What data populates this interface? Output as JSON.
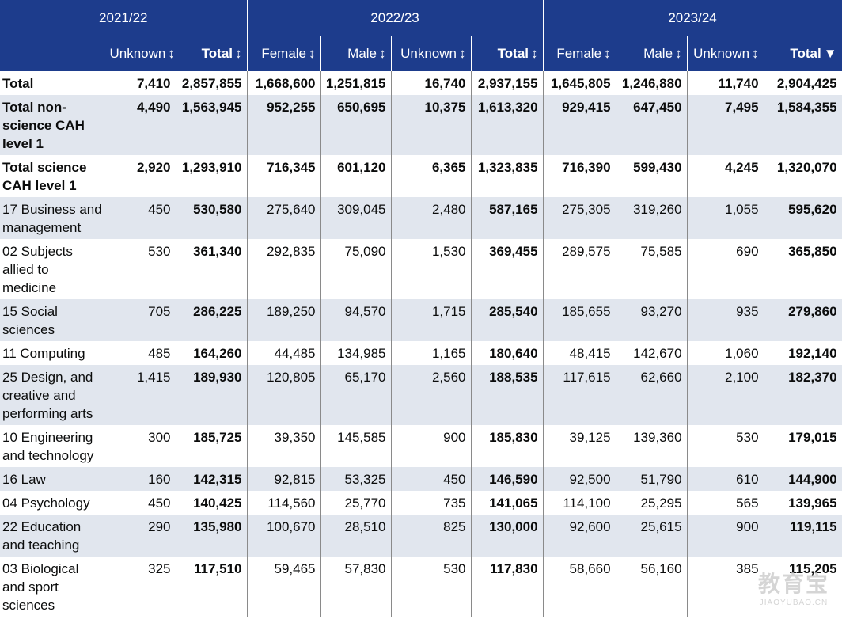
{
  "colors": {
    "header_bg": "#1d3c8c",
    "header_text": "#ffffff",
    "row_shade": "#e1e6ee"
  },
  "years": [
    "2021/22",
    "2022/23",
    "2023/24"
  ],
  "columns": [
    {
      "label": "",
      "icon": ""
    },
    {
      "label": "Unknown",
      "icon": "sort-both-icon",
      "glyph": "↕"
    },
    {
      "label": "Total",
      "icon": "sort-both-icon",
      "glyph": "↕"
    },
    {
      "label": "Female",
      "icon": "sort-both-icon",
      "glyph": "↕"
    },
    {
      "label": "Male",
      "icon": "sort-both-icon",
      "glyph": "↕"
    },
    {
      "label": "Unknown",
      "icon": "sort-both-icon",
      "glyph": "↕"
    },
    {
      "label": "Total",
      "icon": "sort-both-icon",
      "glyph": "↕"
    },
    {
      "label": "Female",
      "icon": "sort-both-icon",
      "glyph": "↕"
    },
    {
      "label": "Male",
      "icon": "sort-both-icon",
      "glyph": "↕"
    },
    {
      "label": "Unknown",
      "icon": "sort-both-icon",
      "glyph": "↕"
    },
    {
      "label": "Total",
      "icon": "sort-desc-icon",
      "glyph": "▼"
    }
  ],
  "rows": [
    {
      "label": "Total",
      "cells": [
        "7,410",
        "2,857,855",
        "1,668,600",
        "1,251,815",
        "16,740",
        "2,937,155",
        "1,645,805",
        "1,246,880",
        "11,740",
        "2,904,425"
      ]
    },
    {
      "label": "Total non-science CAH level 1",
      "cells": [
        "4,490",
        "1,563,945",
        "952,255",
        "650,695",
        "10,375",
        "1,613,320",
        "929,415",
        "647,450",
        "7,495",
        "1,584,355"
      ]
    },
    {
      "label": "Total science CAH level 1",
      "cells": [
        "2,920",
        "1,293,910",
        "716,345",
        "601,120",
        "6,365",
        "1,323,835",
        "716,390",
        "599,430",
        "4,245",
        "1,320,070"
      ]
    },
    {
      "label": "17 Business and management",
      "cells": [
        "450",
        "530,580",
        "275,640",
        "309,045",
        "2,480",
        "587,165",
        "275,305",
        "319,260",
        "1,055",
        "595,620"
      ]
    },
    {
      "label": "02 Subjects allied to medicine",
      "cells": [
        "530",
        "361,340",
        "292,835",
        "75,090",
        "1,530",
        "369,455",
        "289,575",
        "75,585",
        "690",
        "365,850"
      ]
    },
    {
      "label": "15 Social sciences",
      "cells": [
        "705",
        "286,225",
        "189,250",
        "94,570",
        "1,715",
        "285,540",
        "185,655",
        "93,270",
        "935",
        "279,860"
      ]
    },
    {
      "label": "11 Computing",
      "cells": [
        "485",
        "164,260",
        "44,485",
        "134,985",
        "1,165",
        "180,640",
        "48,415",
        "142,670",
        "1,060",
        "192,140"
      ]
    },
    {
      "label": "25 Design, and creative and performing arts",
      "cells": [
        "1,415",
        "189,930",
        "120,805",
        "65,170",
        "2,560",
        "188,535",
        "117,615",
        "62,660",
        "2,100",
        "182,370"
      ]
    },
    {
      "label": "10 Engineering and technology",
      "cells": [
        "300",
        "185,725",
        "39,350",
        "145,585",
        "900",
        "185,830",
        "39,125",
        "139,360",
        "530",
        "179,015"
      ]
    },
    {
      "label": "16 Law",
      "cells": [
        "160",
        "142,315",
        "92,815",
        "53,325",
        "450",
        "146,590",
        "92,500",
        "51,790",
        "610",
        "144,900"
      ]
    },
    {
      "label": "04 Psychology",
      "cells": [
        "450",
        "140,425",
        "114,560",
        "25,770",
        "735",
        "141,065",
        "114,100",
        "25,295",
        "565",
        "139,965"
      ]
    },
    {
      "label": "22 Education and teaching",
      "cells": [
        "290",
        "135,980",
        "100,670",
        "28,510",
        "825",
        "130,000",
        "92,600",
        "25,615",
        "900",
        "119,115"
      ]
    },
    {
      "label": "03 Biological and sport sciences",
      "cells": [
        "325",
        "117,510",
        "59,465",
        "57,830",
        "530",
        "117,830",
        "58,660",
        "56,160",
        "385",
        "115,205"
      ]
    }
  ],
  "watermark": {
    "main": "教育宝",
    "sub": "JIAOYUBAO.CN"
  },
  "chart_data": {
    "type": "table",
    "column_groups": [
      "2021/22",
      "2022/23",
      "2023/24"
    ],
    "headers": [
      "",
      "Unknown",
      "Total",
      "Female",
      "Male",
      "Unknown",
      "Total",
      "Female",
      "Male",
      "Unknown",
      "Total"
    ],
    "row_labels": [
      "Total",
      "Total non-science CAH level 1",
      "Total science CAH level 1",
      "17 Business and management",
      "02 Subjects allied to medicine",
      "15 Social sciences",
      "11 Computing",
      "25 Design, and creative and performing arts",
      "10 Engineering and technology",
      "16 Law",
      "04 Psychology",
      "22 Education and teaching",
      "03 Biological and sport sciences"
    ],
    "values": [
      [
        7410,
        2857855,
        1668600,
        1251815,
        16740,
        2937155,
        1645805,
        1246880,
        11740,
        2904425
      ],
      [
        4490,
        1563945,
        952255,
        650695,
        10375,
        1613320,
        929415,
        647450,
        7495,
        1584355
      ],
      [
        2920,
        1293910,
        716345,
        601120,
        6365,
        1323835,
        716390,
        599430,
        4245,
        1320070
      ],
      [
        450,
        530580,
        275640,
        309045,
        2480,
        587165,
        275305,
        319260,
        1055,
        595620
      ],
      [
        530,
        361340,
        292835,
        75090,
        1530,
        369455,
        289575,
        75585,
        690,
        365850
      ],
      [
        705,
        286225,
        189250,
        94570,
        1715,
        285540,
        185655,
        93270,
        935,
        279860
      ],
      [
        485,
        164260,
        44485,
        134985,
        1165,
        180640,
        48415,
        142670,
        1060,
        192140
      ],
      [
        1415,
        189930,
        120805,
        65170,
        2560,
        188535,
        117615,
        62660,
        2100,
        182370
      ],
      [
        300,
        185725,
        39350,
        145585,
        900,
        185830,
        39125,
        139360,
        530,
        179015
      ],
      [
        160,
        142315,
        92815,
        53325,
        450,
        146590,
        92500,
        51790,
        610,
        144900
      ],
      [
        450,
        140425,
        114560,
        25770,
        735,
        141065,
        114100,
        25295,
        565,
        139965
      ],
      [
        290,
        135980,
        100670,
        28510,
        825,
        130000,
        92600,
        25615,
        900,
        119115
      ],
      [
        325,
        117510,
        59465,
        57830,
        530,
        117830,
        58660,
        56160,
        385,
        115205
      ]
    ]
  }
}
